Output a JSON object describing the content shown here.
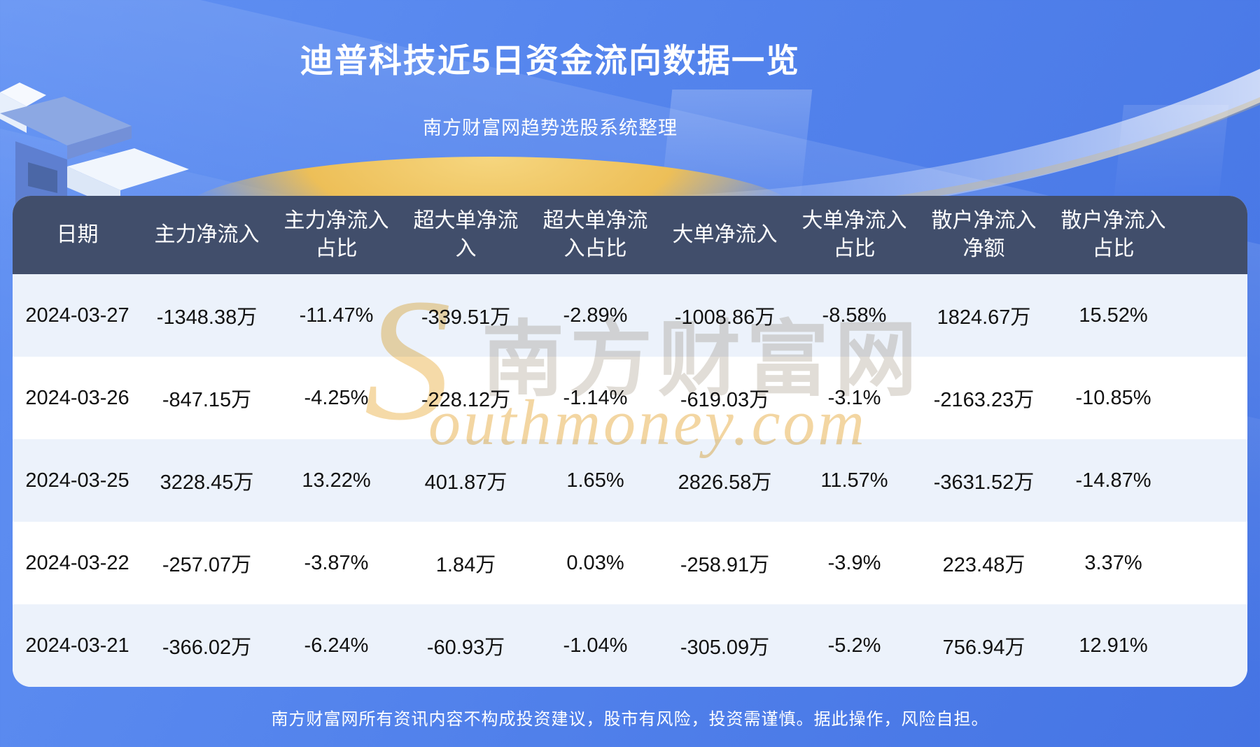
{
  "title": "迪普科技近5日资金流向数据一览",
  "subtitle": "南方财富网趋势选股系统整理",
  "watermark": {
    "initial": "S",
    "cn": "南方财富网",
    "en": "outhmoney.com"
  },
  "table": {
    "headers": [
      "日期",
      "主力净流入",
      "主力净流入占比",
      "超大单净流入",
      "超大单净流入占比",
      "大单净流入",
      "大单净流入占比",
      "散户净流入净额",
      "散户净流入占比"
    ],
    "rows": [
      [
        "2024-03-27",
        "-1348.38万",
        "-11.47%",
        "-339.51万",
        "-2.89%",
        "-1008.86万",
        "-8.58%",
        "1824.67万",
        "15.52%"
      ],
      [
        "2024-03-26",
        "-847.15万",
        "-4.25%",
        "-228.12万",
        "-1.14%",
        "-619.03万",
        "-3.1%",
        "-2163.23万",
        "-10.85%"
      ],
      [
        "2024-03-25",
        "3228.45万",
        "13.22%",
        "401.87万",
        "1.65%",
        "2826.58万",
        "11.57%",
        "-3631.52万",
        "-14.87%"
      ],
      [
        "2024-03-22",
        "-257.07万",
        "-3.87%",
        "1.84万",
        "0.03%",
        "-258.91万",
        "-3.9%",
        "223.48万",
        "3.37%"
      ],
      [
        "2024-03-21",
        "-366.02万",
        "-6.24%",
        "-60.93万",
        "-1.04%",
        "-305.09万",
        "-5.2%",
        "756.94万",
        "12.91%"
      ]
    ]
  },
  "footer": "南方财富网所有资讯内容不构成投资建议，股市有风险，投资需谨慎。据此操作，风险自担。",
  "colors": {
    "background": "#5383ec",
    "header_bg": "#414e6b",
    "row_alt_bg": "#ecf2fb",
    "row_bg": "#ffffff",
    "gold_arc": "#edbf58",
    "watermark_orange": "#f3d49e",
    "text": "#111111"
  },
  "chart_data": {
    "type": "table",
    "title": "迪普科技近5日资金流向数据一览",
    "columns": [
      "日期",
      "主力净流入",
      "主力净流入占比",
      "超大单净流入",
      "超大单净流入占比",
      "大单净流入",
      "大单净流入占比",
      "散户净流入净额",
      "散户净流入占比"
    ],
    "rows": [
      [
        "2024-03-27",
        "-1348.38万",
        "-11.47%",
        "-339.51万",
        "-2.89%",
        "-1008.86万",
        "-8.58%",
        "1824.67万",
        "15.52%"
      ],
      [
        "2024-03-26",
        "-847.15万",
        "-4.25%",
        "-228.12万",
        "-1.14%",
        "-619.03万",
        "-3.1%",
        "-2163.23万",
        "-10.85%"
      ],
      [
        "2024-03-25",
        "3228.45万",
        "13.22%",
        "401.87万",
        "1.65%",
        "2826.58万",
        "11.57%",
        "-3631.52万",
        "-14.87%"
      ],
      [
        "2024-03-22",
        "-257.07万",
        "-3.87%",
        "1.84万",
        "0.03%",
        "-258.91万",
        "-3.9%",
        "223.48万",
        "3.37%"
      ],
      [
        "2024-03-21",
        "-366.02万",
        "-6.24%",
        "-60.93万",
        "-1.04%",
        "-305.09万",
        "-5.2%",
        "756.94万",
        "12.91%"
      ]
    ]
  }
}
